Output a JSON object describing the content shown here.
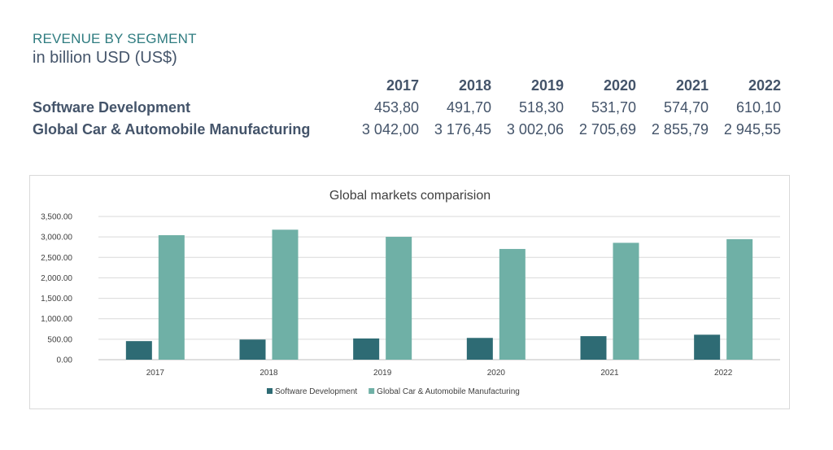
{
  "heading": {
    "title": "REVENUE BY SEGMENT",
    "subtitle": "in billion USD (US$)"
  },
  "table": {
    "years": [
      "2017",
      "2018",
      "2019",
      "2020",
      "2021",
      "2022"
    ],
    "rows": [
      {
        "label": "Software Development",
        "values": [
          "453,80",
          "491,70",
          "518,30",
          "531,70",
          "574,70",
          "610,10"
        ]
      },
      {
        "label": "Global Car & Automobile Manufacturing",
        "values": [
          "3 042,00",
          "3 176,45",
          "3 002,06",
          "2 705,69",
          "2 855,79",
          "2 945,55"
        ]
      }
    ]
  },
  "chart_data": {
    "type": "bar",
    "title": "Global markets comparision",
    "categories": [
      "2017",
      "2018",
      "2019",
      "2020",
      "2021",
      "2022"
    ],
    "series": [
      {
        "name": "Software Development",
        "color": "#2e6b74",
        "values": [
          453.8,
          491.7,
          518.3,
          531.7,
          574.7,
          610.1
        ]
      },
      {
        "name": "Global Car & Automobile Manufacturing",
        "color": "#6fb0a6",
        "values": [
          3042.0,
          3176.45,
          3002.06,
          2705.69,
          2855.79,
          2945.55
        ]
      }
    ],
    "ylim": [
      0,
      3500
    ],
    "yticks": [
      "0.00",
      "500.00",
      "1,000.00",
      "1,500.00",
      "2,000.00",
      "2,500.00",
      "3,000.00",
      "3,500.00"
    ],
    "grid": true,
    "legend_position": "bottom"
  }
}
